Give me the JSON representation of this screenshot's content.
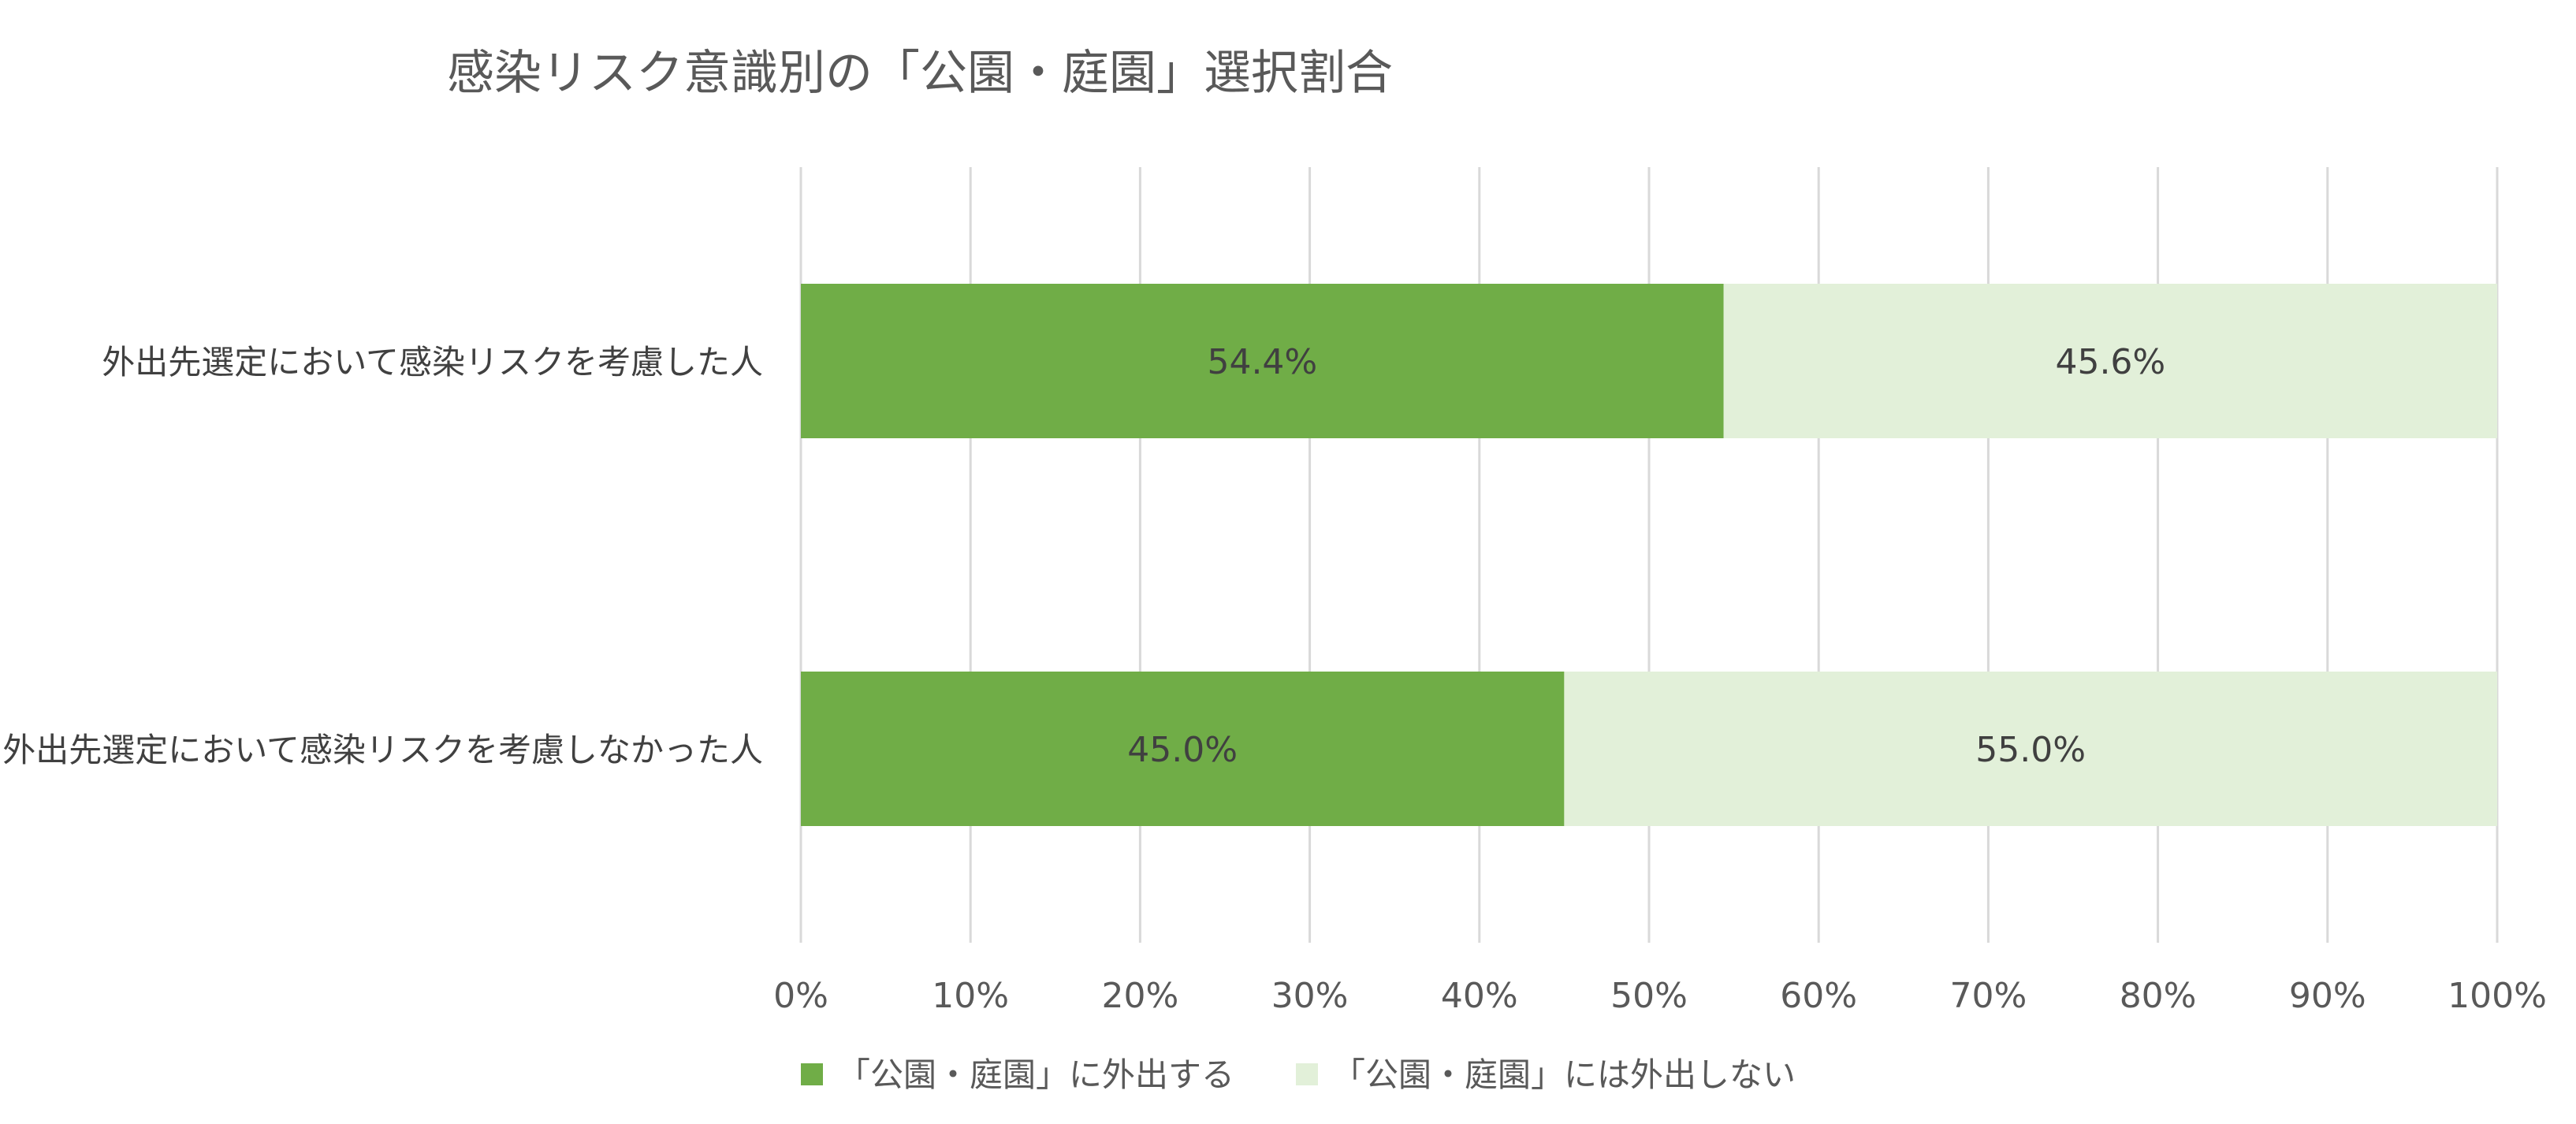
{
  "chart_data": {
    "type": "bar",
    "orientation": "horizontal",
    "stacked": "percent",
    "title": "感染リスク意識別の「公園・庭園」選択割合",
    "categories": [
      "外出先選定において感染リスクを考慮した人",
      "外出先選定において感染リスクを考慮しなかった人"
    ],
    "series": [
      {
        "name": "「公園・庭園」に外出する",
        "color": "#70ad47",
        "values": [
          54.4,
          45.0
        ],
        "labels": [
          "54.4%",
          "45.0%"
        ]
      },
      {
        "name": "「公園・庭園」には外出しない",
        "color": "#e2f0d9",
        "values": [
          45.6,
          55.0
        ],
        "labels": [
          "45.6%",
          "55.0%"
        ]
      }
    ],
    "xlim": [
      0,
      100
    ],
    "xticks": [
      0,
      10,
      20,
      30,
      40,
      50,
      60,
      70,
      80,
      90,
      100
    ],
    "xtick_labels": [
      "0%",
      "10%",
      "20%",
      "30%",
      "40%",
      "50%",
      "60%",
      "70%",
      "80%",
      "90%",
      "100%"
    ],
    "grid": true,
    "legend_position": "bottom",
    "label_color": "#404040",
    "grid_color": "#d9d9d9"
  }
}
